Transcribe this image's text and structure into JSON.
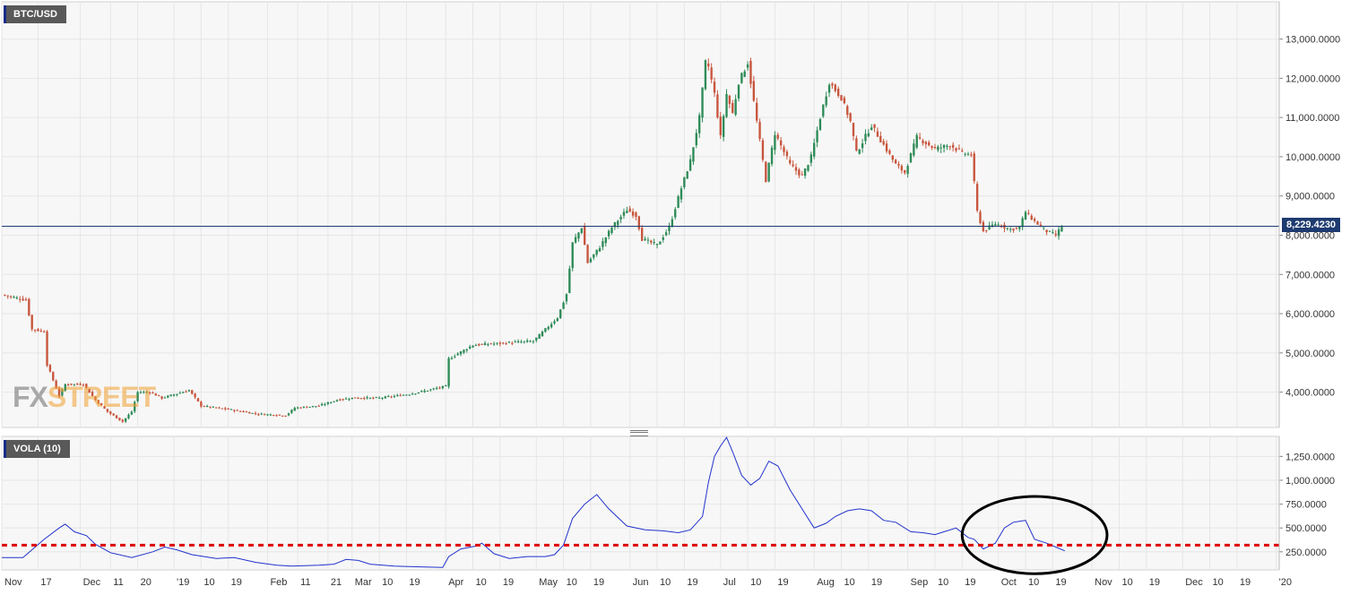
{
  "price_pane": {
    "label": "BTC/USD",
    "current_price_label": "8,229.4230",
    "watermark_fx": "FX",
    "watermark_street": "STREET"
  },
  "indicator_pane": {
    "label": "VOLA (10)"
  },
  "colors": {
    "up_candle": "#2e8b57",
    "down_candle": "#c8553d",
    "price_line": "#1e3b70",
    "vola_line": "#2233cc",
    "threshold_line": "#dd0000",
    "highlight_ellipse": "#000000",
    "grid": "#e6e6e6",
    "plot_bg": "#f7f7f7"
  },
  "chart_data": [
    {
      "type": "candlestick",
      "title": "BTC/USD",
      "ylim": [
        3100,
        13950
      ],
      "yticks": [
        4000,
        5000,
        6000,
        7000,
        8000,
        9000,
        10000,
        11000,
        12000,
        13000
      ],
      "ytick_labels": [
        "4,000.0000",
        "5,000.0000",
        "6,000.0000",
        "7,000.0000",
        "8,000.0000",
        "9,000.0000",
        "10,000.0000",
        "11,000.0000",
        "12,000.0000",
        "13,000.0000"
      ],
      "current_price": 8229.423,
      "xrange": [
        "2018-11-05",
        "2020-01-02"
      ],
      "xticks": [
        {
          "date": "2018-11-05",
          "label": "Nov"
        },
        {
          "date": "2018-11-17",
          "label": "17"
        },
        {
          "date": "2018-12-01",
          "label": "Dec"
        },
        {
          "date": "2018-12-11",
          "label": "11"
        },
        {
          "date": "2018-12-20",
          "label": "20"
        },
        {
          "date": "2019-01-01",
          "label": "'19"
        },
        {
          "date": "2019-01-10",
          "label": "10"
        },
        {
          "date": "2019-01-19",
          "label": "19"
        },
        {
          "date": "2019-02-01",
          "label": "Feb"
        },
        {
          "date": "2019-02-11",
          "label": "11"
        },
        {
          "date": "2019-02-21",
          "label": "21"
        },
        {
          "date": "2019-03-01",
          "label": "Mar"
        },
        {
          "date": "2019-03-10",
          "label": "10"
        },
        {
          "date": "2019-03-19",
          "label": "19"
        },
        {
          "date": "2019-04-01",
          "label": "Apr"
        },
        {
          "date": "2019-04-10",
          "label": "10"
        },
        {
          "date": "2019-04-19",
          "label": "19"
        },
        {
          "date": "2019-05-01",
          "label": "May"
        },
        {
          "date": "2019-05-10",
          "label": "10"
        },
        {
          "date": "2019-05-19",
          "label": "19"
        },
        {
          "date": "2019-06-01",
          "label": "Jun"
        },
        {
          "date": "2019-06-10",
          "label": "10"
        },
        {
          "date": "2019-06-19",
          "label": "19"
        },
        {
          "date": "2019-07-01",
          "label": "Jul"
        },
        {
          "date": "2019-07-10",
          "label": "10"
        },
        {
          "date": "2019-07-19",
          "label": "19"
        },
        {
          "date": "2019-08-01",
          "label": "Aug"
        },
        {
          "date": "2019-08-10",
          "label": "10"
        },
        {
          "date": "2019-08-19",
          "label": "19"
        },
        {
          "date": "2019-09-01",
          "label": "Sep"
        },
        {
          "date": "2019-09-10",
          "label": "10"
        },
        {
          "date": "2019-09-19",
          "label": "19"
        },
        {
          "date": "2019-10-01",
          "label": "Oct"
        },
        {
          "date": "2019-10-10",
          "label": "10"
        },
        {
          "date": "2019-10-19",
          "label": "19"
        },
        {
          "date": "2019-11-01",
          "label": "Nov"
        },
        {
          "date": "2019-11-10",
          "label": "10"
        },
        {
          "date": "2019-11-19",
          "label": "19"
        },
        {
          "date": "2019-12-01",
          "label": "Dec"
        },
        {
          "date": "2019-12-10",
          "label": "10"
        },
        {
          "date": "2019-12-19",
          "label": "19"
        },
        {
          "date": "2020-01-01",
          "label": "'20"
        }
      ],
      "close_anchors": [
        [
          "2018-11-05",
          6480
        ],
        [
          "2018-11-13",
          6350
        ],
        [
          "2018-11-15",
          5600
        ],
        [
          "2018-11-19",
          5550
        ],
        [
          "2018-11-20",
          4700
        ],
        [
          "2018-11-24",
          3900
        ],
        [
          "2018-11-26",
          4200
        ],
        [
          "2018-12-02",
          4200
        ],
        [
          "2018-12-06",
          3800
        ],
        [
          "2018-12-10",
          3500
        ],
        [
          "2018-12-15",
          3250
        ],
        [
          "2018-12-18",
          3500
        ],
        [
          "2018-12-20",
          4000
        ],
        [
          "2018-12-24",
          4000
        ],
        [
          "2018-12-28",
          3850
        ],
        [
          "2019-01-06",
          4050
        ],
        [
          "2019-01-10",
          3650
        ],
        [
          "2019-01-20",
          3550
        ],
        [
          "2019-01-28",
          3450
        ],
        [
          "2019-02-07",
          3400
        ],
        [
          "2019-02-10",
          3600
        ],
        [
          "2019-02-18",
          3650
        ],
        [
          "2019-02-24",
          3800
        ],
        [
          "2019-03-01",
          3850
        ],
        [
          "2019-03-10",
          3850
        ],
        [
          "2019-03-20",
          3950
        ],
        [
          "2019-03-29",
          4100
        ],
        [
          "2019-04-01",
          4150
        ],
        [
          "2019-04-02",
          4850
        ],
        [
          "2019-04-10",
          5200
        ],
        [
          "2019-04-20",
          5250
        ],
        [
          "2019-04-30",
          5300
        ],
        [
          "2019-05-08",
          5900
        ],
        [
          "2019-05-11",
          6500
        ],
        [
          "2019-05-13",
          7800
        ],
        [
          "2019-05-16",
          8200
        ],
        [
          "2019-05-18",
          7300
        ],
        [
          "2019-05-22",
          7700
        ],
        [
          "2019-05-26",
          8200
        ],
        [
          "2019-05-31",
          8650
        ],
        [
          "2019-06-03",
          8500
        ],
        [
          "2019-06-05",
          7900
        ],
        [
          "2019-06-10",
          7750
        ],
        [
          "2019-06-14",
          8200
        ],
        [
          "2019-06-18",
          9200
        ],
        [
          "2019-06-21",
          9900
        ],
        [
          "2019-06-24",
          11000
        ],
        [
          "2019-06-26",
          12400
        ],
        [
          "2019-06-27",
          12300
        ],
        [
          "2019-06-29",
          11600
        ],
        [
          "2019-07-01",
          10500
        ],
        [
          "2019-07-03",
          11600
        ],
        [
          "2019-07-05",
          11100
        ],
        [
          "2019-07-07",
          11900
        ],
        [
          "2019-07-10",
          12400
        ],
        [
          "2019-07-12",
          11400
        ],
        [
          "2019-07-14",
          10400
        ],
        [
          "2019-07-16",
          9400
        ],
        [
          "2019-07-19",
          10600
        ],
        [
          "2019-07-24",
          9800
        ],
        [
          "2019-07-28",
          9500
        ],
        [
          "2019-07-31",
          10000
        ],
        [
          "2019-08-03",
          11000
        ],
        [
          "2019-08-06",
          11900
        ],
        [
          "2019-08-10",
          11500
        ],
        [
          "2019-08-13",
          10900
        ],
        [
          "2019-08-15",
          10100
        ],
        [
          "2019-08-20",
          10800
        ],
        [
          "2019-08-24",
          10300
        ],
        [
          "2019-08-28",
          9800
        ],
        [
          "2019-08-31",
          9600
        ],
        [
          "2019-09-04",
          10500
        ],
        [
          "2019-09-10",
          10200
        ],
        [
          "2019-09-15",
          10300
        ],
        [
          "2019-09-19",
          10100
        ],
        [
          "2019-09-22",
          10050
        ],
        [
          "2019-09-24",
          8600
        ],
        [
          "2019-09-26",
          8100
        ],
        [
          "2019-09-30",
          8300
        ],
        [
          "2019-10-05",
          8150
        ],
        [
          "2019-10-08",
          8200
        ],
        [
          "2019-10-10",
          8600
        ],
        [
          "2019-10-13",
          8350
        ],
        [
          "2019-10-17",
          8100
        ],
        [
          "2019-10-20",
          8000
        ],
        [
          "2019-10-22",
          8229
        ]
      ],
      "candle_color_rule": "green when close > open, red when close < open"
    },
    {
      "type": "line",
      "title": "VOLA (10)",
      "ylim": [
        60,
        1460
      ],
      "yticks": [
        250,
        500,
        750,
        1000,
        1250
      ],
      "ytick_labels": [
        "250.0000",
        "500.0000",
        "750.0000",
        "1,000.0000",
        "1,250.0000"
      ],
      "series": [
        {
          "points": [
            [
              "2018-11-05",
              190
            ],
            [
              "2018-11-12",
              190
            ],
            [
              "2018-11-19",
              380
            ],
            [
              "2018-11-24",
              500
            ],
            [
              "2018-11-26",
              540
            ],
            [
              "2018-11-29",
              460
            ],
            [
              "2018-12-03",
              420
            ],
            [
              "2018-12-06",
              330
            ],
            [
              "2018-12-11",
              240
            ],
            [
              "2018-12-18",
              190
            ],
            [
              "2018-12-25",
              250
            ],
            [
              "2018-12-29",
              300
            ],
            [
              "2019-01-02",
              270
            ],
            [
              "2019-01-07",
              220
            ],
            [
              "2019-01-15",
              180
            ],
            [
              "2019-01-21",
              190
            ],
            [
              "2019-01-28",
              140
            ],
            [
              "2019-02-04",
              110
            ],
            [
              "2019-02-09",
              100
            ],
            [
              "2019-02-18",
              110
            ],
            [
              "2019-02-23",
              120
            ],
            [
              "2019-02-27",
              170
            ],
            [
              "2019-03-03",
              160
            ],
            [
              "2019-03-07",
              120
            ],
            [
              "2019-03-15",
              100
            ],
            [
              "2019-03-25",
              90
            ],
            [
              "2019-03-31",
              85
            ],
            [
              "2019-04-02",
              200
            ],
            [
              "2019-04-06",
              280
            ],
            [
              "2019-04-11",
              310
            ],
            [
              "2019-04-13",
              340
            ],
            [
              "2019-04-17",
              230
            ],
            [
              "2019-04-22",
              180
            ],
            [
              "2019-04-28",
              200
            ],
            [
              "2019-05-04",
              200
            ],
            [
              "2019-05-07",
              220
            ],
            [
              "2019-05-10",
              320
            ],
            [
              "2019-05-13",
              600
            ],
            [
              "2019-05-17",
              750
            ],
            [
              "2019-05-21",
              850
            ],
            [
              "2019-05-25",
              700
            ],
            [
              "2019-05-31",
              520
            ],
            [
              "2019-06-06",
              480
            ],
            [
              "2019-06-12",
              470
            ],
            [
              "2019-06-17",
              450
            ],
            [
              "2019-06-21",
              480
            ],
            [
              "2019-06-25",
              620
            ],
            [
              "2019-06-27",
              980
            ],
            [
              "2019-06-29",
              1250
            ],
            [
              "2019-07-01",
              1360
            ],
            [
              "2019-07-03",
              1450
            ],
            [
              "2019-07-05",
              1300
            ],
            [
              "2019-07-08",
              1050
            ],
            [
              "2019-07-11",
              950
            ],
            [
              "2019-07-14",
              1020
            ],
            [
              "2019-07-17",
              1200
            ],
            [
              "2019-07-20",
              1150
            ],
            [
              "2019-07-24",
              900
            ],
            [
              "2019-07-28",
              700
            ],
            [
              "2019-08-01",
              500
            ],
            [
              "2019-08-05",
              550
            ],
            [
              "2019-08-08",
              620
            ],
            [
              "2019-08-12",
              680
            ],
            [
              "2019-08-16",
              700
            ],
            [
              "2019-08-20",
              680
            ],
            [
              "2019-08-24",
              580
            ],
            [
              "2019-08-28",
              560
            ],
            [
              "2019-09-02",
              460
            ],
            [
              "2019-09-06",
              450
            ],
            [
              "2019-09-10",
              430
            ],
            [
              "2019-09-14",
              470
            ],
            [
              "2019-09-17",
              500
            ],
            [
              "2019-09-21",
              400
            ],
            [
              "2019-09-23",
              380
            ],
            [
              "2019-09-26",
              280
            ],
            [
              "2019-09-30",
              340
            ],
            [
              "2019-10-03",
              500
            ],
            [
              "2019-10-06",
              560
            ],
            [
              "2019-10-08",
              570
            ],
            [
              "2019-10-10",
              580
            ],
            [
              "2019-10-13",
              380
            ],
            [
              "2019-10-17",
              340
            ],
            [
              "2019-10-20",
              300
            ],
            [
              "2019-10-23",
              260
            ]
          ]
        }
      ],
      "threshold_value": 320
    }
  ]
}
